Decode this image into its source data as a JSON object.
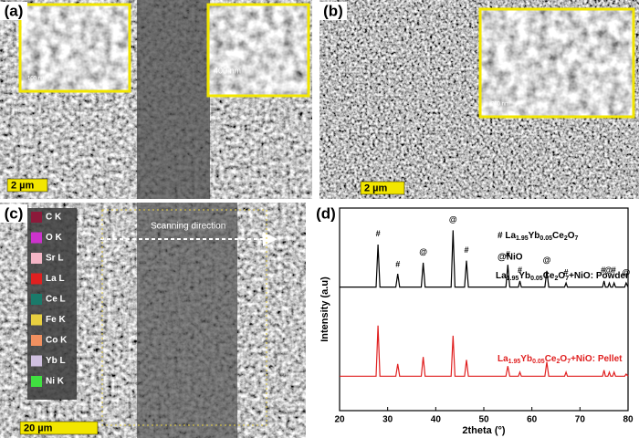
{
  "panels": [
    {
      "label": "(a)",
      "insets": [
        "100 nm",
        "400 nm"
      ],
      "scale_bar": "2 µm"
    },
    {
      "label": "(b)",
      "insets": [
        "200 nm"
      ],
      "scale_bar": "2 µm"
    },
    {
      "label": "(c)",
      "legend": [
        {
          "name": "C K",
          "color": "#8b1a3a"
        },
        {
          "name": "O K",
          "color": "#cc33cc"
        },
        {
          "name": "Sr L",
          "color": "#f4b6c6"
        },
        {
          "name": "La L",
          "color": "#e02020"
        },
        {
          "name": "Ce L",
          "color": "#1a7a6a"
        },
        {
          "name": "Fe K",
          "color": "#e8d040"
        },
        {
          "name": "Co K",
          "color": "#f09060"
        },
        {
          "name": "Yb L",
          "color": "#d0c0e0"
        },
        {
          "name": "Ni K",
          "color": "#40e040"
        }
      ],
      "annotation": "Scanning direction",
      "scale_bar": "20 µm"
    }
  ],
  "chart_data": {
    "type": "line",
    "panel_label": "(d)",
    "x_label": "2theta (°)",
    "y_label": "Intensity (a.u)",
    "xlim": [
      20,
      80
    ],
    "xticks": [
      20,
      30,
      40,
      50,
      60,
      70,
      80
    ],
    "ylim": [
      0,
      100
    ],
    "x": [
      20,
      27.6,
      28.0,
      28.4,
      31.7,
      32.1,
      32.5,
      37.0,
      37.4,
      37.8,
      43.2,
      43.6,
      44.0,
      46.0,
      46.4,
      46.8,
      54.6,
      55.0,
      55.4,
      57.2,
      57.5,
      57.8,
      62.7,
      63.1,
      63.5,
      66.8,
      67.1,
      67.4,
      74.7,
      75.0,
      75.3,
      75.8,
      76.1,
      76.4,
      76.8,
      77.1,
      77.4,
      79.3,
      79.6,
      80
    ],
    "series": [
      {
        "name": "La1.95Yb0.05Ce2O7+NiO: Powder",
        "color": "#000000",
        "values": [
          61,
          61,
          82,
          61,
          61,
          67.5,
          61,
          61,
          73,
          61,
          61,
          89,
          61,
          61,
          74,
          61,
          61,
          72,
          61,
          61,
          64,
          61,
          61,
          69,
          61,
          61,
          63,
          61,
          61,
          64,
          61,
          61,
          63,
          61,
          61,
          63,
          61,
          61,
          63,
          61
        ]
      },
      {
        "name": "La1.95Yb0.05Ce2O7+NiO: Pellet",
        "color": "#e02020",
        "values": [
          17,
          17,
          42,
          17,
          17,
          23,
          17,
          17,
          26.5,
          17,
          17,
          37,
          17,
          17,
          25,
          17,
          17,
          22,
          17,
          17,
          19,
          17,
          17,
          24,
          17,
          17,
          19,
          17,
          17,
          20,
          17,
          17,
          19,
          17,
          17,
          19,
          17,
          17,
          18,
          17
        ]
      }
    ],
    "legend_texts": [
      "# La1.95Yb0.05Ce2O7",
      "@NiO"
    ],
    "annotations": [
      {
        "x": 28.0,
        "y": 87,
        "text": "#"
      },
      {
        "x": 32.1,
        "y": 72,
        "text": "#"
      },
      {
        "x": 37.4,
        "y": 78,
        "text": "@"
      },
      {
        "x": 43.6,
        "y": 94,
        "text": "@"
      },
      {
        "x": 46.4,
        "y": 79,
        "text": "#"
      },
      {
        "x": 55.0,
        "y": 77,
        "text": "#"
      },
      {
        "x": 57.5,
        "y": 69,
        "text": "#"
      },
      {
        "x": 63.1,
        "y": 74,
        "text": "@"
      },
      {
        "x": 67.1,
        "y": 68,
        "text": "#"
      },
      {
        "x": 74.8,
        "y": 69,
        "text": "#"
      },
      {
        "x": 75.9,
        "y": 69,
        "text": "@"
      },
      {
        "x": 77.0,
        "y": 69,
        "text": "#"
      },
      {
        "x": 79.6,
        "y": 68,
        "text": "@"
      }
    ]
  }
}
